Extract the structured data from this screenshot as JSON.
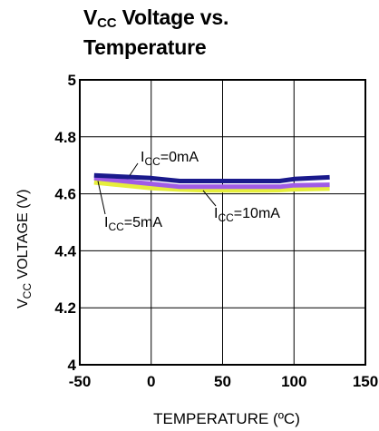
{
  "chart_data": {
    "type": "line",
    "title_main": "V",
    "title_sub": "CC",
    "title_rest": " Voltage vs.",
    "title_line2": "Temperature",
    "xlabel": "TEMPERATURE (ºC)",
    "ylabel_main": "V",
    "ylabel_sub": "CC",
    "ylabel_rest": " VOLTAGE (V)",
    "xlim": [
      -50,
      150
    ],
    "ylim": [
      4,
      5
    ],
    "x_ticks": [
      "-50",
      "0",
      "50",
      "100",
      "150"
    ],
    "y_ticks": [
      "5",
      "4.8",
      "4.6",
      "4.4",
      "4.2",
      "4"
    ],
    "grid": true,
    "series": [
      {
        "name_main": "I",
        "name_sub": "CC",
        "name_rest": "=0mA",
        "color": "#1a1a8c",
        "x": [
          -40,
          -20,
          0,
          20,
          40,
          60,
          80,
          90,
          100,
          125
        ],
        "y": [
          4.665,
          4.66,
          4.655,
          4.645,
          4.645,
          4.645,
          4.645,
          4.645,
          4.652,
          4.658
        ]
      },
      {
        "name_main": "I",
        "name_sub": "CC",
        "name_rest": "=5mA",
        "color": "#a05ce6",
        "x": [
          -40,
          -20,
          0,
          20,
          40,
          60,
          80,
          90,
          100,
          125
        ],
        "y": [
          4.655,
          4.645,
          4.635,
          4.625,
          4.625,
          4.625,
          4.625,
          4.625,
          4.63,
          4.632
        ]
      },
      {
        "name_main": "I",
        "name_sub": "CC",
        "name_rest": "=10mA",
        "color": "#e6ee3c",
        "x": [
          -40,
          -20,
          0,
          20,
          40,
          60,
          80,
          90,
          100,
          125
        ],
        "y": [
          4.64,
          4.63,
          4.62,
          4.615,
          4.612,
          4.612,
          4.612,
          4.613,
          4.616,
          4.618
        ]
      }
    ]
  }
}
